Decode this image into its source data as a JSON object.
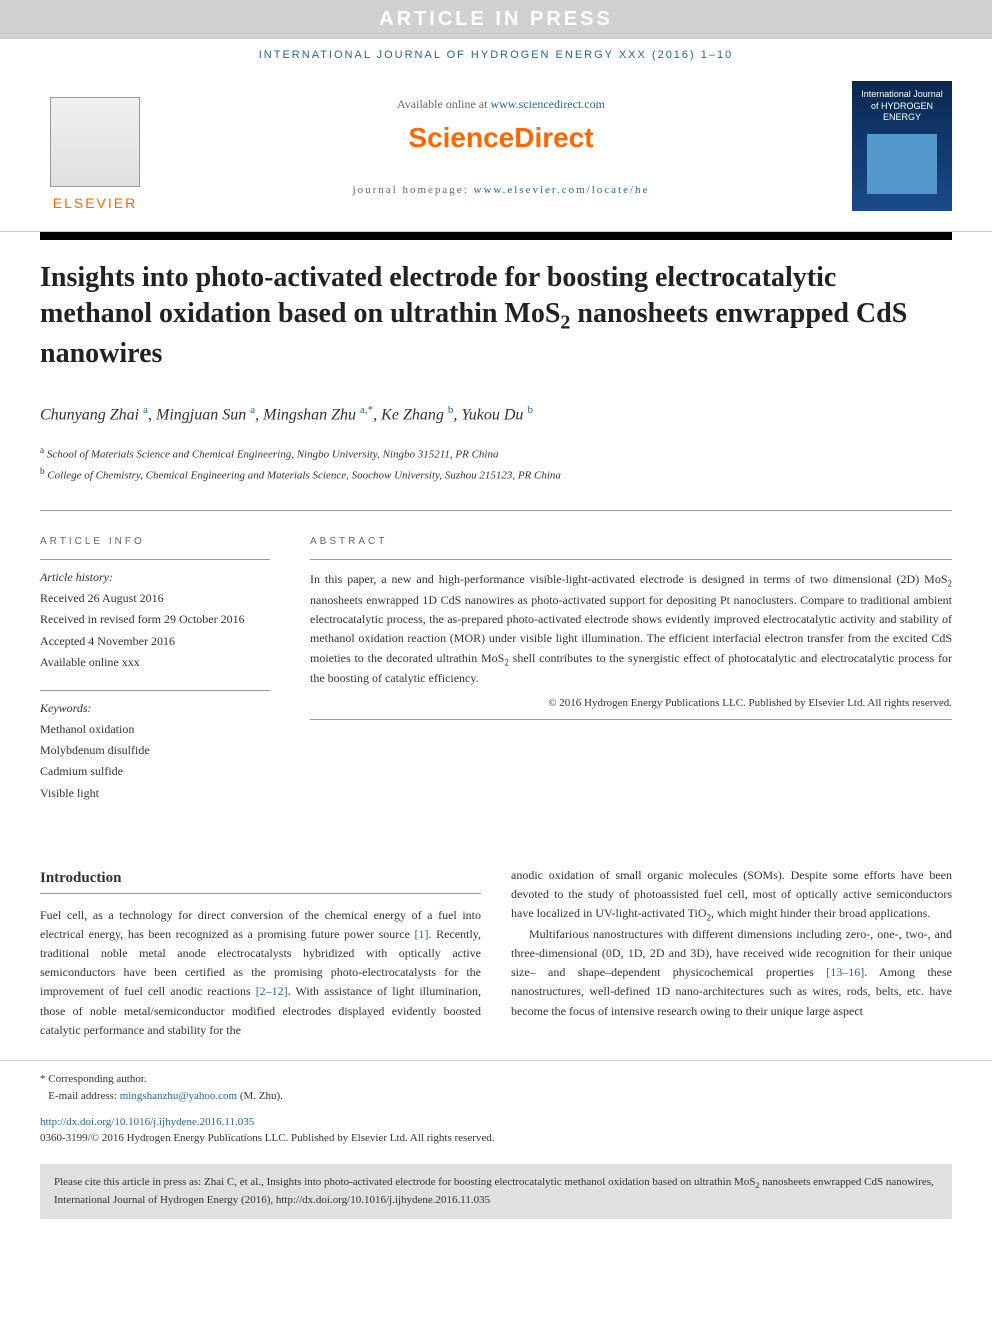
{
  "banner": {
    "article_in_press": "ARTICLE IN PRESS",
    "journal_ref": "INTERNATIONAL JOURNAL OF HYDROGEN ENERGY XXX (2016) 1–10"
  },
  "header": {
    "available_prefix": "Available online at ",
    "available_link": "www.sciencedirect.com",
    "sciencedirect": "ScienceDirect",
    "homepage_prefix": "journal homepage: ",
    "homepage_link": "www.elsevier.com/locate/he",
    "elsevier": "ELSEVIER",
    "cover_title": "International Journal of HYDROGEN ENERGY"
  },
  "title": {
    "text_part1": "Insights into photo-activated electrode for boosting electrocatalytic methanol oxidation based on ultrathin MoS",
    "sub1": "2",
    "text_part2": " nanosheets enwrapped CdS nanowires"
  },
  "authors": {
    "a1_name": "Chunyang Zhai",
    "a1_aff": "a",
    "a2_name": "Mingjuan Sun",
    "a2_aff": "a",
    "a3_name": "Mingshan Zhu",
    "a3_aff": "a,*",
    "a4_name": "Ke Zhang",
    "a4_aff": "b",
    "a5_name": "Yukou Du",
    "a5_aff": "b"
  },
  "affiliations": {
    "a": "School of Materials Science and Chemical Engineering, Ningbo University, Ningbo 315211, PR China",
    "b": "College of Chemistry, Chemical Engineering and Materials Science, Soochow University, Suzhou 215123, PR China"
  },
  "article_info": {
    "heading": "ARTICLE INFO",
    "history_label": "Article history:",
    "received": "Received 26 August 2016",
    "revised": "Received in revised form 29 October 2016",
    "accepted": "Accepted 4 November 2016",
    "available": "Available online xxx",
    "keywords_label": "Keywords:",
    "kw1": "Methanol oxidation",
    "kw2": "Molybdenum disulfide",
    "kw3": "Cadmium sulfide",
    "kw4": "Visible light"
  },
  "abstract": {
    "heading": "ABSTRACT",
    "text_p1a": "In this paper, a new and high-performance visible-light-activated electrode is designed in terms of two dimensional (2D) MoS",
    "text_p1b": " nanosheets enwrapped 1D CdS nanowires as photo-activated support for depositing Pt nanoclusters. Compare to traditional ambient electrocatalytic process, the as-prepared photo-activated electrode shows evidently improved electrocatalytic activity and stability of methanol oxidation reaction (MOR) under visible light illumination. The efficient interfacial electron transfer from the excited CdS moieties to the decorated ultrathin MoS",
    "text_p1c": " shell contributes to the synergistic effect of photocatalytic and electrocatalytic process for the boosting of catalytic efficiency.",
    "copyright": "© 2016 Hydrogen Energy Publications LLC. Published by Elsevier Ltd. All rights reserved."
  },
  "body": {
    "intro_heading": "Introduction",
    "col1_p1a": "Fuel cell, as a technology for direct conversion of the chemical energy of a fuel into electrical energy, has been recognized as a promising future power source ",
    "col1_ref1": "[1]",
    "col1_p1b": ". Recently, traditional noble metal anode electrocatalysts hybridized with optically active semiconductors have been certified as the promising photo-electrocatalysts for the improvement of fuel cell anodic reactions ",
    "col1_ref2": "[2–12]",
    "col1_p1c": ". With assistance of light illumination, those of noble metal/semiconductor modified electrodes displayed evidently boosted catalytic performance and stability for the",
    "col2_p1a": "anodic oxidation of small organic molecules (SOMs). Despite some efforts have been devoted to the study of photoassisted fuel cell, most of optically active semiconductors have localized in UV-light-activated TiO",
    "col2_p1b": ", which might hinder their broad applications.",
    "col2_p2a": "Multifarious nanostructures with different dimensions including zero-, one-, two-, and three-dimensional (0D, 1D, 2D and 3D), have received wide recognition for their unique size– and shape–dependent physicochemical properties ",
    "col2_ref1": "[13–16]",
    "col2_p2b": ". Among these nanostructures, well-defined 1D nano-architectures such as wires, rods, belts, etc. have become the focus of intensive research owing to their unique large aspect"
  },
  "footer": {
    "corresponding": "* Corresponding author.",
    "email_label": "E-mail address: ",
    "email": "mingshanzhu@yahoo.com",
    "email_suffix": " (M. Zhu).",
    "doi": "http://dx.doi.org/10.1016/j.ijhydene.2016.11.035",
    "issn": "0360-3199/© 2016 Hydrogen Energy Publications LLC. Published by Elsevier Ltd. All rights reserved."
  },
  "citation": {
    "text_a": "Please cite this article in press as: Zhai C, et al., Insights into photo-activated electrode for boosting electrocatalytic methanol oxidation based on ultrathin MoS",
    "text_b": " nanosheets enwrapped CdS nanowires, International Journal of Hydrogen Energy (2016), http://dx.doi.org/10.1016/j.ijhydene.2016.11.035"
  },
  "colors": {
    "link": "#2a6496",
    "orange": "#ff6600",
    "banner_bg": "#d0d0d0",
    "cover_bg": "#0a2850"
  }
}
